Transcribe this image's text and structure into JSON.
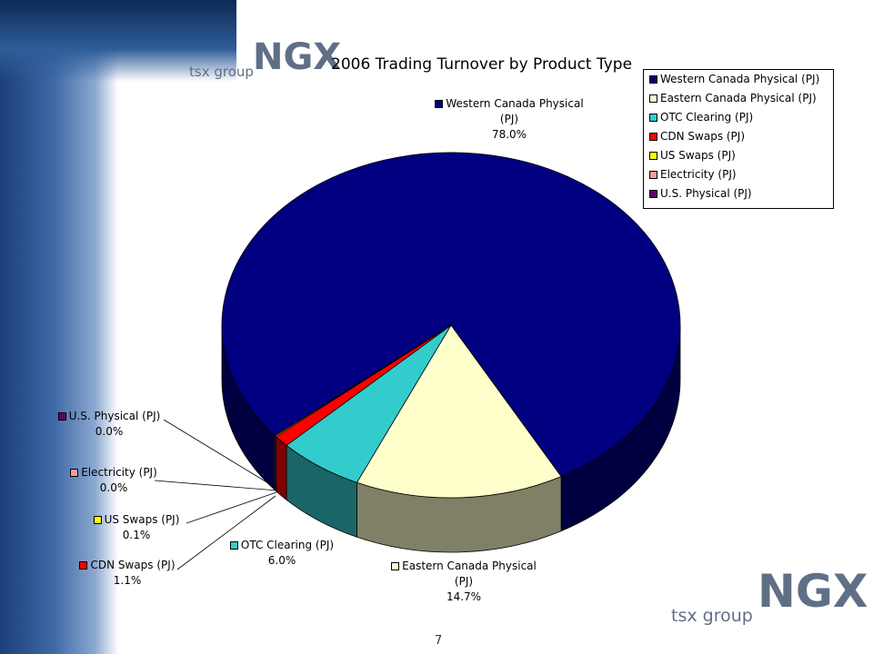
{
  "slide": {
    "logo_text": "NGX",
    "logo_subtext": "tsx group",
    "page_number": "7"
  },
  "chart_data": {
    "type": "pie",
    "title": "2006 Trading Turnover by Product Type",
    "categories": [
      "Western Canada Physical (PJ)",
      "Eastern Canada Physical (PJ)",
      "OTC Clearing (PJ)",
      "CDN Swaps (PJ)",
      "US Swaps (PJ)",
      "Electricity (PJ)",
      "U.S. Physical (PJ)"
    ],
    "values": [
      78.0,
      14.7,
      6.0,
      1.1,
      0.1,
      0.0,
      0.0
    ],
    "value_labels": [
      "78.0%",
      "14.7%",
      "6.0%",
      "1.1%",
      "0.1%",
      "0.0%",
      "0.0%"
    ],
    "colors": [
      "#000080",
      "#ffffcc",
      "#33cccc",
      "#ff0000",
      "#ffff00",
      "#ff9999",
      "#660066"
    ],
    "legend": "upper right"
  }
}
